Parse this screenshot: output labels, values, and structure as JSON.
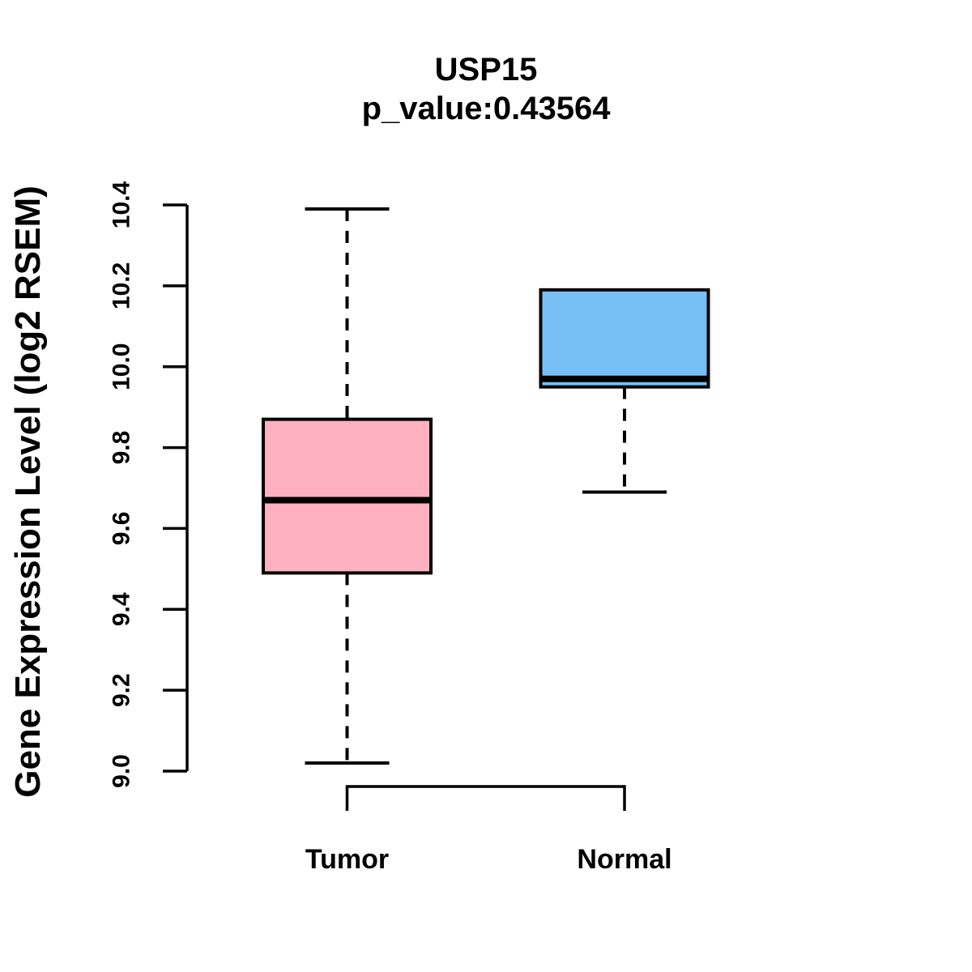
{
  "chart": {
    "title": "USP15",
    "subtitle": "p_value:0.43564",
    "ylabel": "Gene Expression Level (log2 RSEM)"
  },
  "chart_data": {
    "type": "boxplot",
    "title": "USP15",
    "subtitle": "p_value:0.43564",
    "ylabel": "Gene Expression Level (log2 RSEM)",
    "xlabel": "",
    "ylim": [
      9.0,
      10.4
    ],
    "yticks": [
      9.0,
      9.2,
      9.4,
      9.6,
      9.8,
      10.0,
      10.2,
      10.4
    ],
    "categories": [
      "Tumor",
      "Normal"
    ],
    "grid": false,
    "legend": false,
    "axis_color": "#000000",
    "series": [
      {
        "name": "Tumor",
        "whisker_low": 9.02,
        "q1": 9.49,
        "median": 9.67,
        "q3": 9.87,
        "whisker_high": 10.39,
        "fill_color": "#FFB0C1"
      },
      {
        "name": "Normal",
        "whisker_low": 9.69,
        "q1": 9.95,
        "median": 9.97,
        "q3": 10.19,
        "whisker_high": 10.19,
        "fill_color": "#77BFF5"
      }
    ]
  }
}
